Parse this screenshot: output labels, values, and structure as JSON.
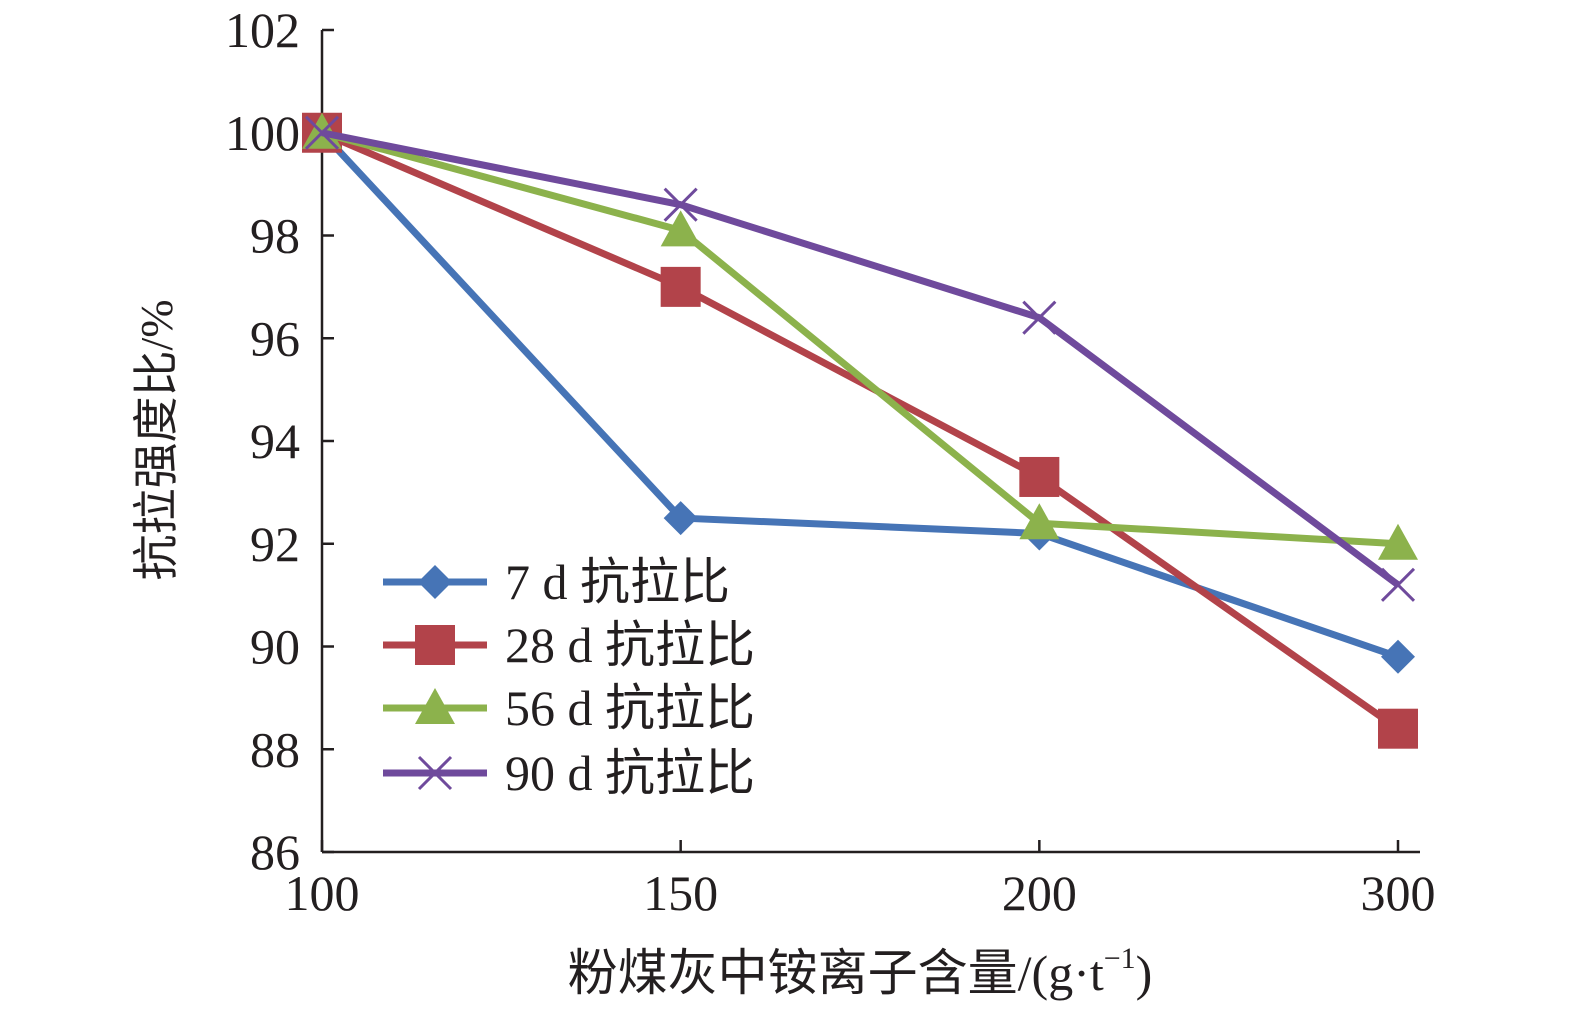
{
  "chart_data": {
    "type": "line",
    "categories": [
      "100",
      "150",
      "200",
      "300"
    ],
    "x_scale": "categorical",
    "ylim": [
      86,
      102
    ],
    "yticks": [
      86,
      88,
      90,
      92,
      94,
      96,
      98,
      100,
      102
    ],
    "ytick_labels": [
      "86",
      "88",
      "90",
      "92",
      "94",
      "96",
      "98",
      "100",
      "102"
    ],
    "ylabel": "抗拉强度比/%",
    "xlabel_main": "粉煤灰中铵离子含量/(g·t",
    "xlabel_sup": "−1",
    "xlabel_tail": ")",
    "grid": false,
    "legend_position": "lower-left",
    "series": [
      {
        "name": "7 d 抗拉比",
        "color": "#4674b6",
        "marker": "diamond",
        "values": [
          100,
          92.5,
          92.2,
          89.8
        ]
      },
      {
        "name": "28 d 抗拉比",
        "color": "#b2434a",
        "marker": "square",
        "values": [
          100,
          97.0,
          93.3,
          88.4
        ]
      },
      {
        "name": "56 d 抗拉比",
        "color": "#8cb24c",
        "marker": "triangle",
        "values": [
          100,
          98.1,
          92.4,
          92.0
        ]
      },
      {
        "name": "90 d 抗拉比",
        "color": "#6f4a9c",
        "marker": "x",
        "values": [
          100,
          98.6,
          96.4,
          91.2
        ]
      }
    ]
  }
}
